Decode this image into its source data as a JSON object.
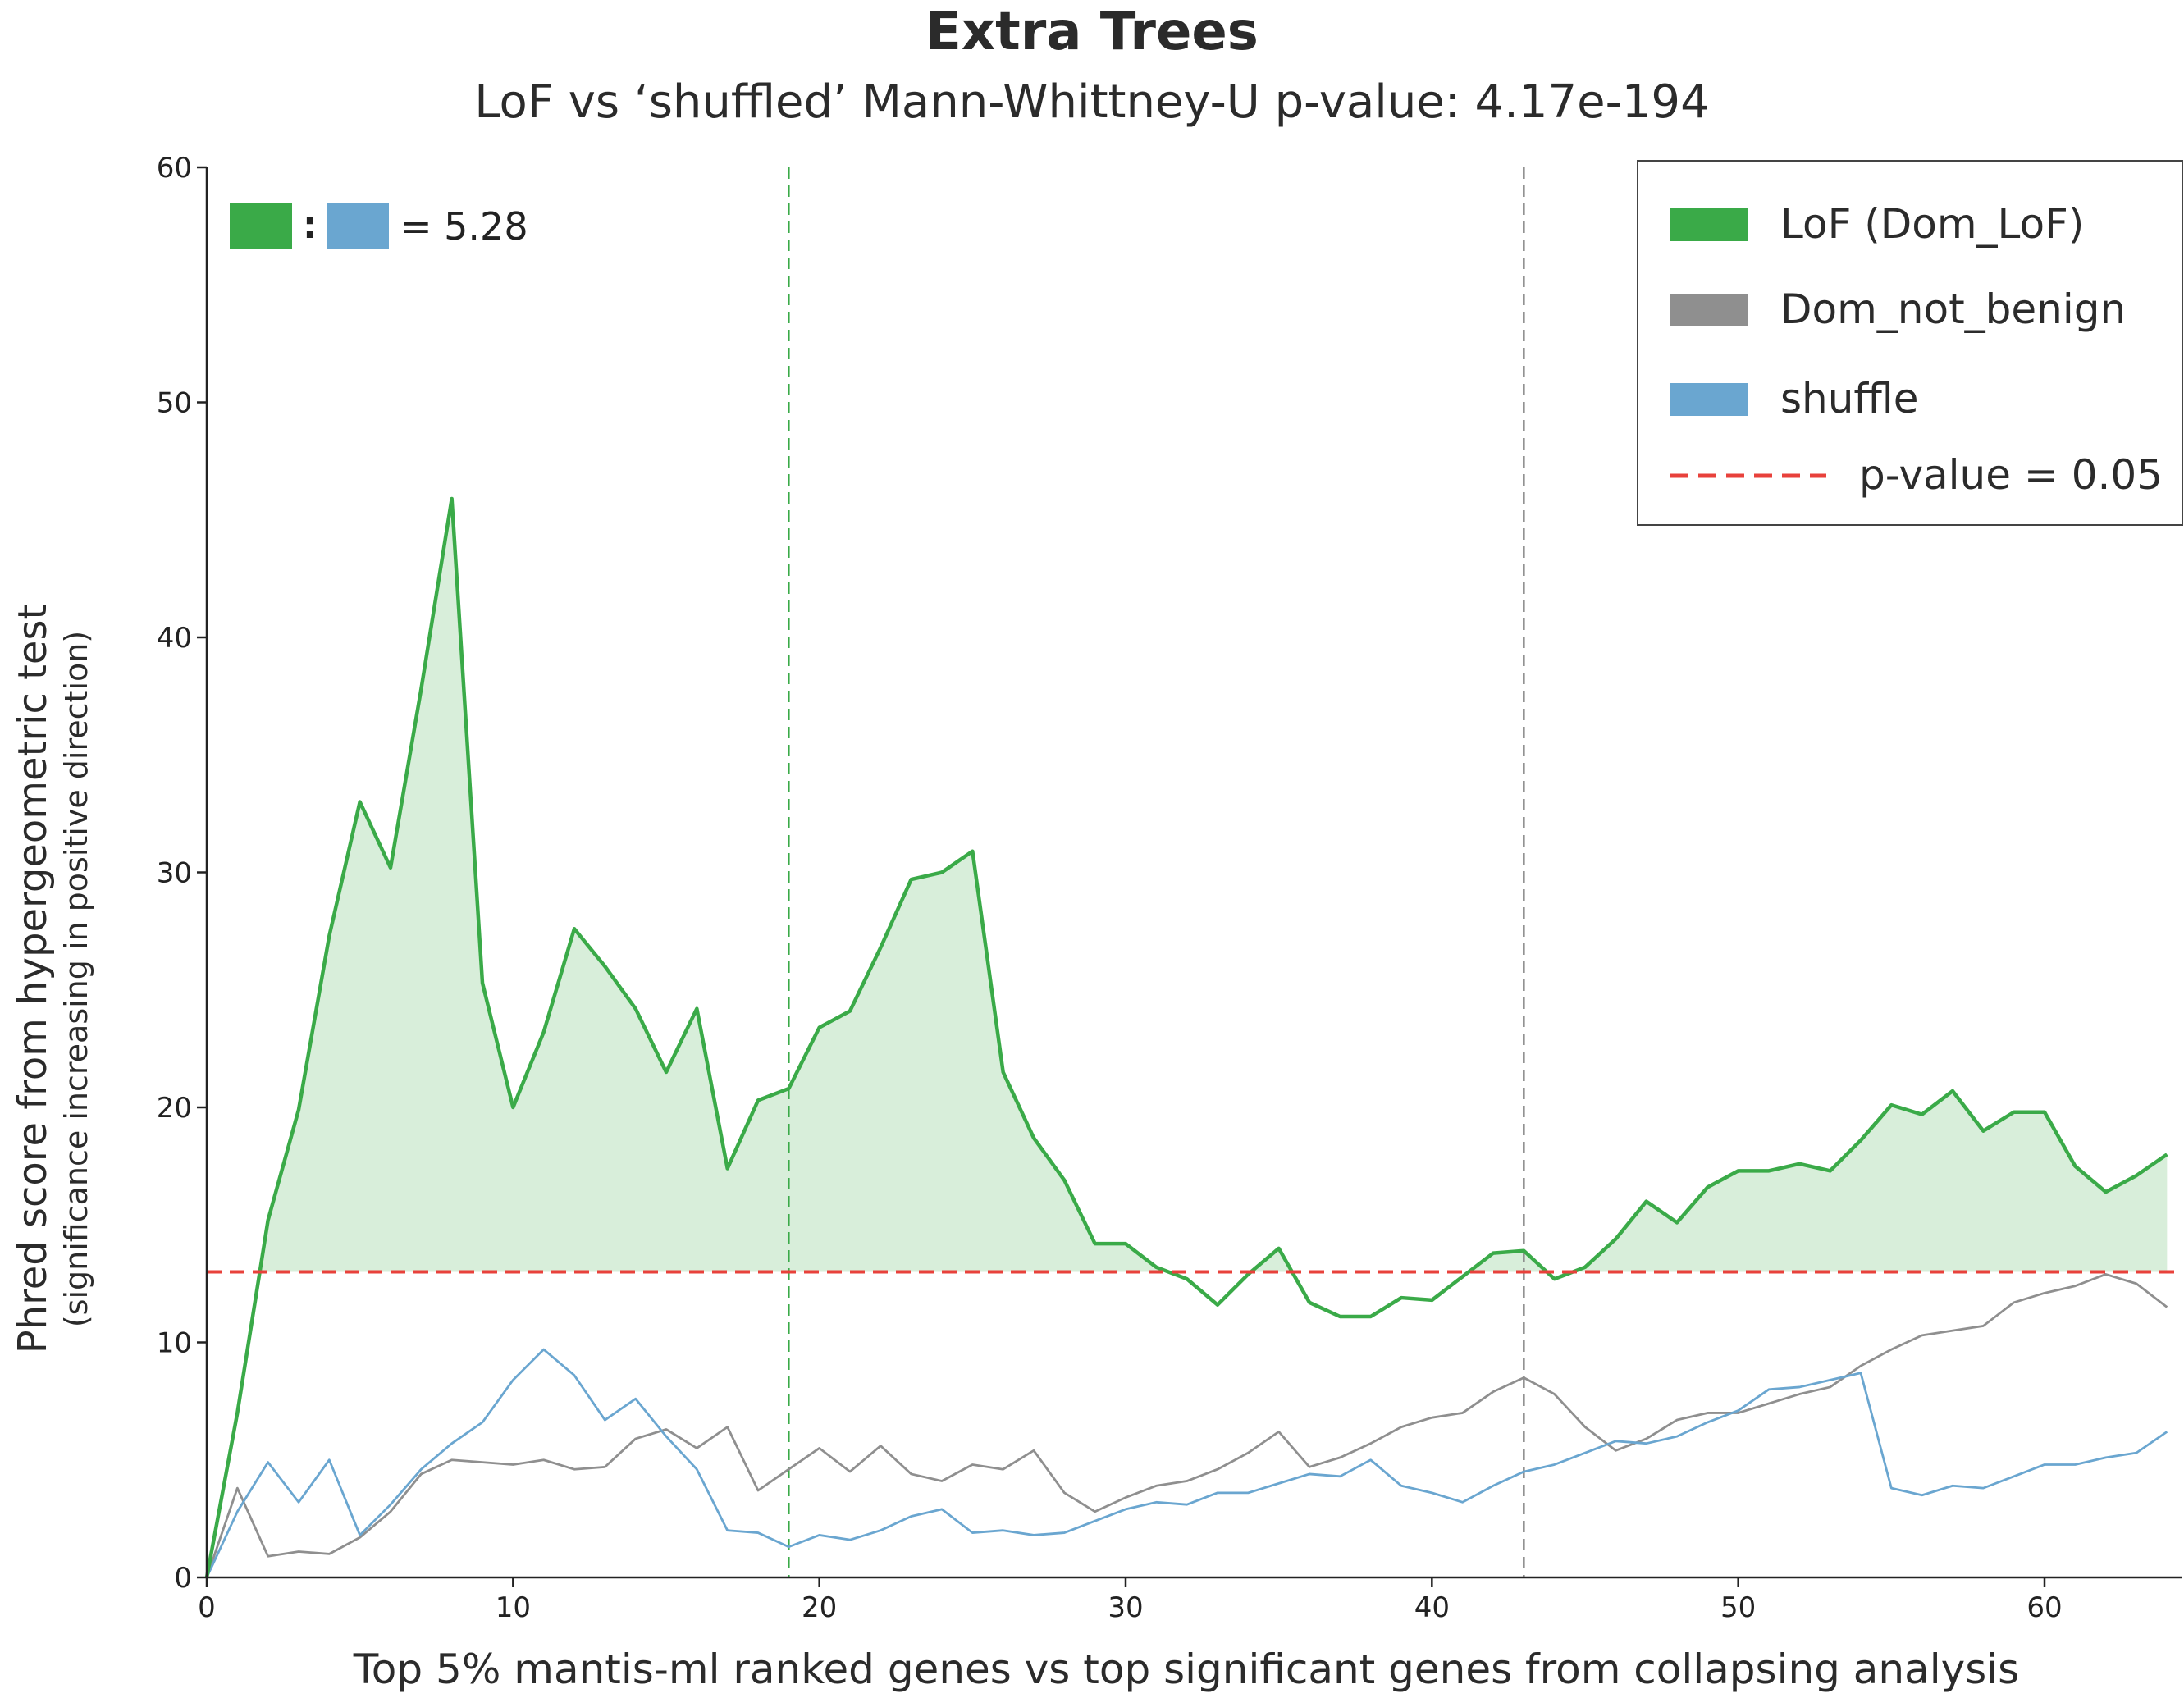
{
  "chart_data": {
    "type": "line",
    "title": "Extra Trees",
    "subtitle": "LoF vs ‘shuffled’ Mann-Whittney-U p-value: 4.17e-194",
    "xlabel": "Top 5% mantis-ml ranked genes vs top significant genes from collapsing analysis",
    "ylabel": "Phred score from hypergeometric test",
    "ylabel_sub": "(significance increasing in positive direction)",
    "xlim": [
      0,
      64.5
    ],
    "ylim": [
      0,
      60
    ],
    "xticks": [
      0,
      10,
      20,
      30,
      40,
      50,
      60
    ],
    "yticks": [
      0,
      10,
      20,
      30,
      40,
      50,
      60
    ],
    "grid": false,
    "legend_position": "top-right",
    "ratio_annotation": {
      "separator": ":",
      "text": "= 5.28"
    },
    "threshold": {
      "name": "p-value = 0.05",
      "y": 13.0,
      "color": "#e8413b"
    },
    "vlines": [
      {
        "x": 19,
        "color": "#3aaa48"
      },
      {
        "x": 43,
        "color": "#888888"
      }
    ],
    "series": [
      {
        "name": "LoF (Dom_LoF)",
        "color": "#3aaa48",
        "fill_above_threshold": true,
        "x": [
          0,
          1,
          2,
          3,
          4,
          5,
          6,
          7,
          8,
          9,
          10,
          11,
          12,
          13,
          14,
          15,
          16,
          17,
          18,
          19,
          20,
          21,
          22,
          23,
          24,
          25,
          26,
          27,
          28,
          29,
          30,
          31,
          32,
          33,
          34,
          35,
          36,
          37,
          38,
          39,
          40,
          41,
          42,
          43,
          44,
          45,
          46,
          47,
          48,
          49,
          50,
          51,
          52,
          53,
          54,
          55,
          56,
          57,
          58,
          59,
          60,
          61,
          62,
          63,
          64
        ],
        "values": [
          0,
          7.0,
          15.2,
          19.9,
          27.3,
          33.0,
          30.2,
          37.8,
          45.9,
          25.3,
          20.0,
          23.2,
          27.6,
          26.0,
          24.2,
          21.5,
          24.2,
          17.4,
          20.3,
          20.8,
          23.4,
          24.1,
          26.8,
          29.7,
          30.0,
          30.9,
          21.5,
          18.7,
          16.9,
          14.2,
          14.2,
          13.2,
          12.7,
          11.6,
          12.9,
          14.0,
          11.7,
          11.1,
          11.1,
          11.9,
          11.8,
          12.8,
          13.8,
          13.9,
          12.7,
          13.2,
          14.4,
          16.0,
          15.1,
          16.6,
          17.3,
          17.3,
          17.6,
          17.3,
          18.6,
          20.1,
          19.7,
          20.7,
          19.0,
          19.8,
          19.8,
          17.5,
          16.4,
          17.1,
          18.0
        ]
      },
      {
        "name": "Dom_not_benign",
        "color": "#8f8f8f",
        "x": [
          0,
          1,
          2,
          3,
          4,
          5,
          6,
          7,
          8,
          9,
          10,
          11,
          12,
          13,
          14,
          15,
          16,
          17,
          18,
          19,
          20,
          21,
          22,
          23,
          24,
          25,
          26,
          27,
          28,
          29,
          30,
          31,
          32,
          33,
          34,
          35,
          36,
          37,
          38,
          39,
          40,
          41,
          42,
          43,
          44,
          45,
          46,
          47,
          48,
          49,
          50,
          51,
          52,
          53,
          54,
          55,
          56,
          57,
          58,
          59,
          60,
          61,
          62,
          63,
          64
        ],
        "values": [
          0,
          3.8,
          0.9,
          1.1,
          1.0,
          1.7,
          2.8,
          4.4,
          5.0,
          4.9,
          4.8,
          5.0,
          4.6,
          4.7,
          5.9,
          6.3,
          5.5,
          6.4,
          3.7,
          4.6,
          5.5,
          4.5,
          5.6,
          4.4,
          4.1,
          4.8,
          4.6,
          5.4,
          3.6,
          2.8,
          3.4,
          3.9,
          4.1,
          4.6,
          5.3,
          6.2,
          4.7,
          5.1,
          5.7,
          6.4,
          6.8,
          7.0,
          7.9,
          8.5,
          7.8,
          6.4,
          5.4,
          5.9,
          6.7,
          7.0,
          7.0,
          7.4,
          7.8,
          8.1,
          9.0,
          9.7,
          10.3,
          10.5,
          10.7,
          11.7,
          12.1,
          12.4,
          12.9,
          12.5,
          11.5
        ]
      },
      {
        "name": "shuffle",
        "color": "#6aa6d0",
        "x": [
          0,
          1,
          2,
          3,
          4,
          5,
          6,
          7,
          8,
          9,
          10,
          11,
          12,
          13,
          14,
          15,
          16,
          17,
          18,
          19,
          20,
          21,
          22,
          23,
          24,
          25,
          26,
          27,
          28,
          29,
          30,
          31,
          32,
          33,
          34,
          35,
          36,
          37,
          38,
          39,
          40,
          41,
          42,
          43,
          44,
          45,
          46,
          47,
          48,
          49,
          50,
          51,
          52,
          53,
          54,
          55,
          56,
          57,
          58,
          59,
          60,
          61,
          62,
          63,
          64
        ],
        "values": [
          0,
          2.8,
          4.9,
          3.2,
          5.0,
          1.8,
          3.1,
          4.6,
          5.7,
          6.6,
          8.4,
          9.7,
          8.6,
          6.7,
          7.6,
          6.0,
          4.6,
          2.0,
          1.9,
          1.3,
          1.8,
          1.6,
          2.0,
          2.6,
          2.9,
          1.9,
          2.0,
          1.8,
          1.9,
          2.4,
          2.9,
          3.2,
          3.1,
          3.6,
          3.6,
          4.0,
          4.4,
          4.3,
          5.0,
          3.9,
          3.6,
          3.2,
          3.9,
          4.5,
          4.8,
          5.3,
          5.8,
          5.7,
          6.0,
          6.6,
          7.1,
          8.0,
          8.1,
          8.4,
          8.7,
          3.8,
          3.5,
          3.9,
          3.8,
          4.3,
          4.8,
          4.8,
          5.1,
          5.3,
          6.2
        ]
      }
    ]
  }
}
